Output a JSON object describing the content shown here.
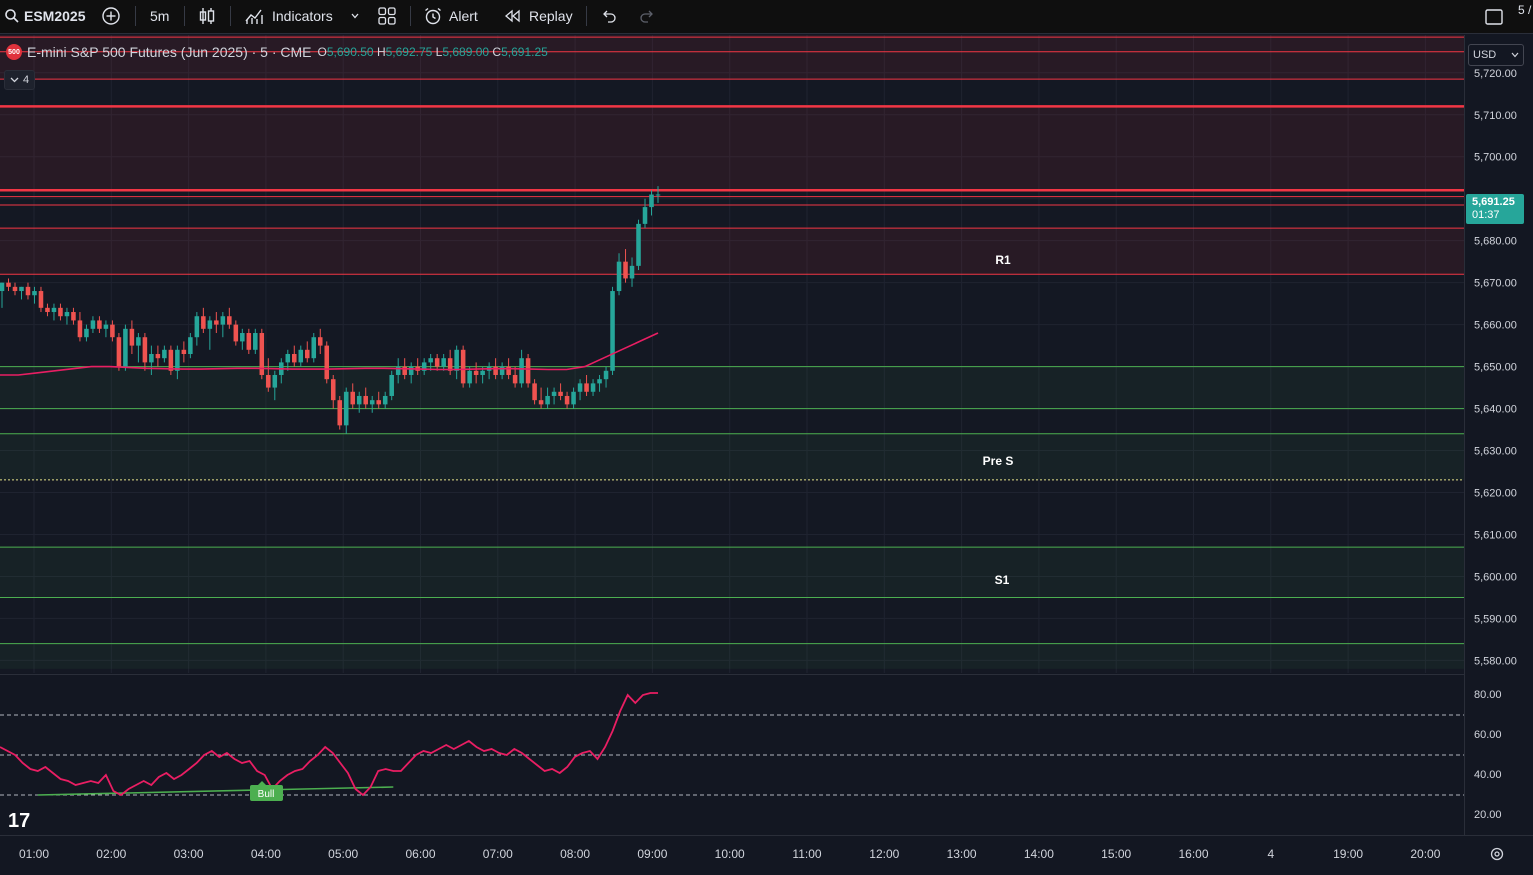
{
  "toolbar": {
    "symbol": "ESM2025",
    "interval": "5m",
    "indicators_label": "Indicators",
    "alert_label": "Alert",
    "replay_label": "Replay",
    "right_text": "5 /"
  },
  "legend": {
    "badge": "500",
    "title": "E-mini S&P 500 Futures (Jun 2025) · 5 · CME",
    "open_key": "O",
    "open": "5,690.50",
    "high_key": "H",
    "high": "5,692.75",
    "low_key": "L",
    "low": "5,689.00",
    "close_key": "C",
    "close": "5,691.25",
    "collapsed_count": "4"
  },
  "currency": "USD",
  "last_price": {
    "price": "5,691.25",
    "countdown": "01:37"
  },
  "zone_labels": {
    "r1": "R1",
    "pre_s": "Pre S",
    "s1": "S1"
  },
  "rsi_badge": "Bull",
  "colors": {
    "up": "#26a69a",
    "down": "#ef5350",
    "resistance": "#f23645",
    "support": "#4caf50",
    "ma": "#e91e63",
    "rsi": "#e91e63"
  },
  "chart_data": {
    "type": "candlestick",
    "price_ticks": [
      "5,720.00",
      "5,710.00",
      "5,700.00",
      "5,690.00",
      "5,680.00",
      "5,670.00",
      "5,660.00",
      "5,650.00",
      "5,640.00",
      "5,630.00",
      "5,620.00",
      "5,610.00",
      "5,600.00",
      "5,590.00",
      "5,580.00"
    ],
    "price_tick_values": [
      5720,
      5710,
      5700,
      5690,
      5680,
      5670,
      5660,
      5650,
      5640,
      5630,
      5620,
      5610,
      5600,
      5590,
      5580
    ],
    "time_ticks": [
      "01:00",
      "02:00",
      "03:00",
      "04:00",
      "05:00",
      "06:00",
      "07:00",
      "08:00",
      "09:00",
      "10:00",
      "11:00",
      "12:00",
      "13:00",
      "14:00",
      "15:00",
      "16:00",
      "4",
      "19:00",
      "20:00"
    ],
    "price_range": [
      5577,
      5729
    ],
    "resistance_lines": [
      5728.5,
      5725,
      5718.5,
      5712,
      5692,
      5690.5,
      5688.5,
      5683,
      5672
    ],
    "resistance_zones": [
      [
        5718.5,
        5729
      ],
      [
        5712,
        5692
      ],
      [
        5683,
        5672
      ]
    ],
    "support_lines": [
      5650,
      5640,
      5634,
      5623,
      5607,
      5595,
      5584
    ],
    "support_zones": [
      [
        5650,
        5640
      ],
      [
        5634,
        5623
      ],
      [
        5607,
        5595
      ],
      [
        5584,
        5578
      ]
    ],
    "candles_ohlc": [
      [
        5668,
        5670,
        5664,
        5670
      ],
      [
        5670,
        5671,
        5668,
        5669
      ],
      [
        5669,
        5670,
        5667,
        5668
      ],
      [
        5668,
        5669,
        5666,
        5669
      ],
      [
        5669,
        5670,
        5666,
        5667
      ],
      [
        5667,
        5669,
        5665,
        5668
      ],
      [
        5668,
        5669,
        5663,
        5664
      ],
      [
        5664,
        5665,
        5662,
        5663
      ],
      [
        5663,
        5665,
        5661,
        5664
      ],
      [
        5664,
        5665,
        5661,
        5662
      ],
      [
        5662,
        5664,
        5660,
        5663
      ],
      [
        5663,
        5664,
        5660,
        5661
      ],
      [
        5661,
        5663,
        5656,
        5657
      ],
      [
        5657,
        5660,
        5656,
        5659
      ],
      [
        5659,
        5662,
        5658,
        5661
      ],
      [
        5661,
        5662,
        5658,
        5659
      ],
      [
        5659,
        5661,
        5657,
        5660
      ],
      [
        5660,
        5661,
        5656,
        5657
      ],
      [
        5657,
        5658,
        5649,
        5650
      ],
      [
        5650,
        5660,
        5649,
        5659
      ],
      [
        5659,
        5661,
        5653,
        5655
      ],
      [
        5655,
        5658,
        5651,
        5657
      ],
      [
        5657,
        5658,
        5649,
        5651
      ],
      [
        5651,
        5655,
        5648,
        5653
      ],
      [
        5653,
        5655,
        5650,
        5652
      ],
      [
        5652,
        5655,
        5651,
        5654
      ],
      [
        5654,
        5655,
        5648,
        5649
      ],
      [
        5649,
        5655,
        5647,
        5654
      ],
      [
        5654,
        5656,
        5651,
        5653
      ],
      [
        5653,
        5658,
        5652,
        5657
      ],
      [
        5657,
        5663,
        5655,
        5662
      ],
      [
        5662,
        5664,
        5658,
        5659
      ],
      [
        5659,
        5662,
        5654,
        5661
      ],
      [
        5661,
        5663,
        5658,
        5660
      ],
      [
        5660,
        5663,
        5657,
        5662
      ],
      [
        5662,
        5664,
        5659,
        5660
      ],
      [
        5660,
        5661,
        5655,
        5656
      ],
      [
        5656,
        5659,
        5654,
        5658
      ],
      [
        5658,
        5659,
        5653,
        5654
      ],
      [
        5654,
        5659,
        5653,
        5658
      ],
      [
        5658,
        5659,
        5647,
        5648
      ],
      [
        5648,
        5652,
        5644,
        5645
      ],
      [
        5645,
        5649,
        5642,
        5648
      ],
      [
        5648,
        5652,
        5646,
        5651
      ],
      [
        5651,
        5654,
        5649,
        5653
      ],
      [
        5653,
        5655,
        5650,
        5651
      ],
      [
        5651,
        5655,
        5650,
        5654
      ],
      [
        5654,
        5656,
        5651,
        5652
      ],
      [
        5652,
        5658,
        5651,
        5657
      ],
      [
        5657,
        5659,
        5653,
        5655
      ],
      [
        5655,
        5656,
        5646,
        5647
      ],
      [
        5647,
        5648,
        5640,
        5642
      ],
      [
        5642,
        5643,
        5635,
        5636
      ],
      [
        5636,
        5645,
        5634,
        5644
      ],
      [
        5644,
        5646,
        5640,
        5641
      ],
      [
        5641,
        5644,
        5639,
        5643
      ],
      [
        5643,
        5645,
        5640,
        5641
      ],
      [
        5641,
        5643,
        5639,
        5642
      ],
      [
        5642,
        5644,
        5640,
        5641
      ],
      [
        5641,
        5644,
        5640,
        5643
      ],
      [
        5643,
        5649,
        5642,
        5648
      ],
      [
        5648,
        5652,
        5646,
        5650
      ],
      [
        5650,
        5652,
        5647,
        5648
      ],
      [
        5648,
        5651,
        5646,
        5650
      ],
      [
        5650,
        5652,
        5648,
        5649
      ],
      [
        5649,
        5652,
        5648,
        5651
      ],
      [
        5651,
        5653,
        5649,
        5652
      ],
      [
        5652,
        5653,
        5649,
        5650
      ],
      [
        5650,
        5653,
        5649,
        5652
      ],
      [
        5652,
        5654,
        5648,
        5649
      ],
      [
        5649,
        5655,
        5647,
        5654
      ],
      [
        5654,
        5655,
        5645,
        5646
      ],
      [
        5646,
        5650,
        5645,
        5649
      ],
      [
        5649,
        5651,
        5646,
        5648
      ],
      [
        5648,
        5650,
        5646,
        5649
      ],
      [
        5649,
        5651,
        5647,
        5650
      ],
      [
        5650,
        5652,
        5647,
        5648
      ],
      [
        5648,
        5651,
        5647,
        5650
      ],
      [
        5650,
        5652,
        5647,
        5648
      ],
      [
        5648,
        5650,
        5645,
        5646
      ],
      [
        5646,
        5654,
        5645,
        5652
      ],
      [
        5652,
        5653,
        5645,
        5646
      ],
      [
        5646,
        5647,
        5641,
        5642
      ],
      [
        5642,
        5645,
        5640,
        5641
      ],
      [
        5641,
        5645,
        5640,
        5643
      ],
      [
        5643,
        5645,
        5641,
        5644
      ],
      [
        5644,
        5646,
        5642,
        5643
      ],
      [
        5643,
        5644,
        5640,
        5641
      ],
      [
        5641,
        5645,
        5640,
        5644
      ],
      [
        5644,
        5647,
        5642,
        5646
      ],
      [
        5646,
        5648,
        5643,
        5644
      ],
      [
        5644,
        5647,
        5643,
        5646
      ],
      [
        5646,
        5648,
        5644,
        5647
      ],
      [
        5647,
        5650,
        5645,
        5649
      ],
      [
        5649,
        5669,
        5648,
        5668
      ],
      [
        5668,
        5677,
        5667,
        5675
      ],
      [
        5675,
        5678,
        5670,
        5671
      ],
      [
        5671,
        5676,
        5669,
        5674
      ],
      [
        5674,
        5685,
        5673,
        5684
      ],
      [
        5684,
        5690,
        5683,
        5688
      ],
      [
        5688,
        5692,
        5686,
        5691
      ],
      [
        5691,
        5693,
        5689,
        5691
      ]
    ],
    "ma_series": [
      5648,
      5648,
      5648.5,
      5649,
      5649.5,
      5650,
      5650,
      5649.8,
      5649.6,
      5649.5,
      5649.4,
      5649.4,
      5649.5,
      5649.6,
      5649.6,
      5649.5,
      5649.4,
      5649.4,
      5649.4,
      5649.5,
      5649.6,
      5649.6,
      5649.5,
      5649.4,
      5649.3,
      5649.3,
      5649.4,
      5649.5,
      5649.5,
      5649.4,
      5649.3,
      5649.3,
      5650,
      5652,
      5654,
      5656,
      5658
    ],
    "rsi": {
      "ticks": [
        "80.00",
        "60.00",
        "40.00",
        "20.00"
      ],
      "tick_values": [
        80,
        60,
        40,
        20
      ],
      "range": [
        10,
        90
      ],
      "levels": [
        70,
        50,
        30
      ],
      "values": [
        54,
        52,
        50,
        46,
        43,
        42,
        44,
        41,
        38,
        37,
        35,
        36,
        37,
        36,
        40,
        32,
        30,
        33,
        35,
        37,
        35,
        39,
        41,
        38,
        40,
        43,
        46,
        50,
        52,
        49,
        51,
        48,
        46,
        47,
        42,
        40,
        33,
        37,
        40,
        42,
        43,
        47,
        50,
        54,
        51,
        46,
        41,
        33,
        30,
        34,
        42,
        43,
        42,
        42,
        46,
        50,
        52,
        51,
        53,
        55,
        53,
        55,
        57,
        54,
        52,
        53,
        51,
        50,
        53,
        51,
        48,
        45,
        42,
        43,
        41,
        44,
        49,
        51,
        52,
        48,
        54,
        62,
        72,
        80,
        76,
        80,
        81,
        81
      ],
      "divergence": [
        [
          5,
          30
        ],
        [
          52,
          34
        ]
      ]
    }
  }
}
